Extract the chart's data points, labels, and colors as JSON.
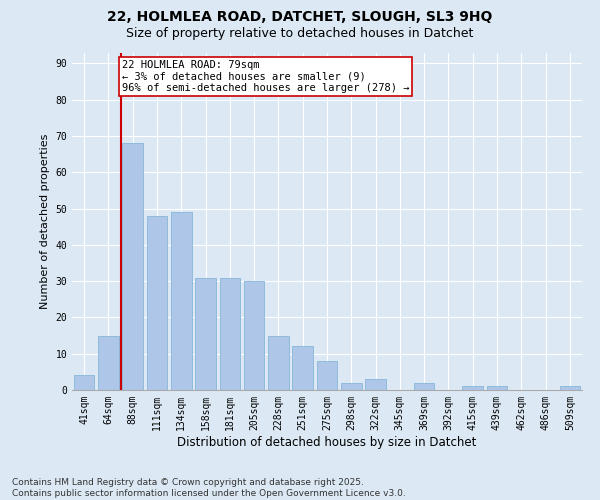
{
  "title": "22, HOLMLEA ROAD, DATCHET, SLOUGH, SL3 9HQ",
  "subtitle": "Size of property relative to detached houses in Datchet",
  "xlabel": "Distribution of detached houses by size in Datchet",
  "ylabel": "Number of detached properties",
  "categories": [
    "41sqm",
    "64sqm",
    "88sqm",
    "111sqm",
    "134sqm",
    "158sqm",
    "181sqm",
    "205sqm",
    "228sqm",
    "251sqm",
    "275sqm",
    "298sqm",
    "322sqm",
    "345sqm",
    "369sqm",
    "392sqm",
    "415sqm",
    "439sqm",
    "462sqm",
    "486sqm",
    "509sqm"
  ],
  "values": [
    4,
    15,
    68,
    48,
    49,
    31,
    31,
    30,
    15,
    12,
    8,
    2,
    3,
    0,
    2,
    0,
    1,
    1,
    0,
    0,
    1
  ],
  "bar_color": "#aec6e8",
  "bar_edge_color": "#7aafd4",
  "vline_color": "#cc0000",
  "vline_pos": 1.5,
  "annotation_text": "22 HOLMLEA ROAD: 79sqm\n← 3% of detached houses are smaller (9)\n96% of semi-detached houses are larger (278) →",
  "annotation_box_color": "#ffffff",
  "annotation_box_edge": "#cc0000",
  "ylim": [
    0,
    93
  ],
  "yticks": [
    0,
    10,
    20,
    30,
    40,
    50,
    60,
    70,
    80,
    90
  ],
  "bg_color": "#dce9f5",
  "plot_bg_color": "#dce9f5",
  "footer_text": "Contains HM Land Registry data © Crown copyright and database right 2025.\nContains public sector information licensed under the Open Government Licence v3.0.",
  "title_fontsize": 10,
  "subtitle_fontsize": 9,
  "xlabel_fontsize": 8.5,
  "ylabel_fontsize": 8,
  "tick_fontsize": 7,
  "annotation_fontsize": 7.5,
  "footer_fontsize": 6.5
}
